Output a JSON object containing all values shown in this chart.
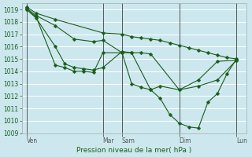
{
  "title": "Pression niveau de la mer( hPa )",
  "bg_color": "#cce8ee",
  "line_color": "#1a5c1a",
  "grid_color": "#ffffff",
  "ylim": [
    1009,
    1019.5
  ],
  "yticks": [
    1009,
    1010,
    1011,
    1012,
    1013,
    1014,
    1015,
    1016,
    1017,
    1018,
    1019
  ],
  "day_labels": [
    "Ven",
    "Mar",
    "Sam",
    "Dim",
    "Lun"
  ],
  "day_positions": [
    0,
    8,
    10,
    16,
    22
  ],
  "xlim": [
    -0.5,
    23
  ],
  "line1": {
    "x": [
      0,
      1,
      3,
      8,
      10,
      11,
      12,
      13,
      14,
      15,
      16,
      17,
      18,
      19,
      20,
      21,
      22
    ],
    "y": [
      1019.2,
      1018.7,
      1018.2,
      1017.1,
      1017.0,
      1016.8,
      1016.7,
      1016.6,
      1016.5,
      1016.3,
      1016.1,
      1015.9,
      1015.7,
      1015.5,
      1015.3,
      1015.1,
      1015.0
    ]
  },
  "line2": {
    "x": [
      0,
      1,
      3,
      5,
      7,
      8,
      10,
      11,
      13,
      14,
      16,
      18,
      20,
      22
    ],
    "y": [
      1019.1,
      1018.5,
      1017.7,
      1016.6,
      1016.4,
      1016.5,
      1015.5,
      1015.5,
      1012.5,
      1012.8,
      1012.5,
      1013.3,
      1014.8,
      1014.9
    ]
  },
  "line3": {
    "x": [
      0,
      1,
      3,
      4,
      5,
      6,
      7,
      8,
      10,
      11,
      12,
      13,
      16,
      18,
      20,
      22
    ],
    "y": [
      1019.0,
      1018.3,
      1016.0,
      1014.6,
      1014.3,
      1014.2,
      1014.1,
      1014.3,
      1015.6,
      1015.5,
      1015.5,
      1015.4,
      1012.5,
      1012.8,
      1013.3,
      1014.9
    ]
  },
  "line4": {
    "x": [
      0,
      1,
      3,
      4,
      5,
      6,
      7,
      8,
      10,
      11,
      12,
      13,
      14,
      15,
      16,
      17,
      18,
      19,
      20,
      21,
      22
    ],
    "y": [
      1019.0,
      1018.4,
      1014.5,
      1014.3,
      1014.0,
      1014.0,
      1013.9,
      1015.5,
      1015.5,
      1013.0,
      1012.7,
      1012.5,
      1011.8,
      1010.5,
      1009.8,
      1009.5,
      1009.4,
      1011.5,
      1012.2,
      1013.8,
      1015.0
    ]
  },
  "marker_size": 2.5
}
